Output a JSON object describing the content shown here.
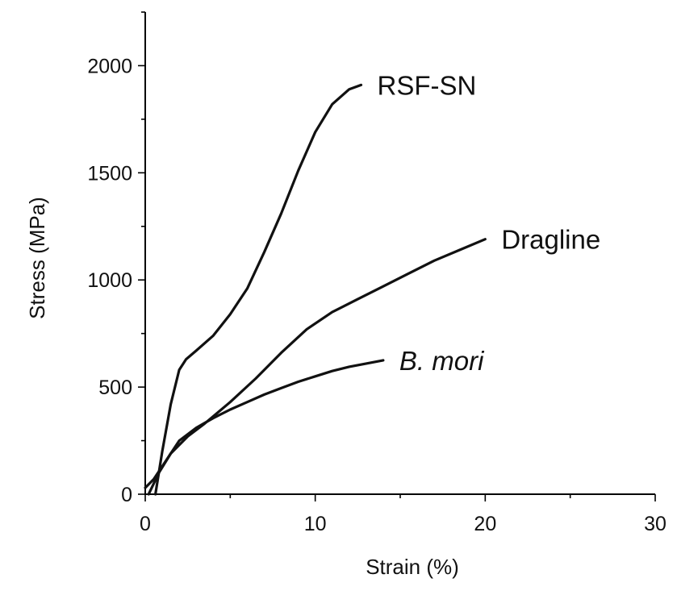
{
  "chart_data": {
    "type": "line",
    "xlabel": "Strain (%)",
    "ylabel": "Stress (MPa)",
    "xlim": [
      0,
      30
    ],
    "ylim": [
      0,
      2250
    ],
    "xticks": [
      0,
      10,
      20,
      30
    ],
    "yticks": [
      0,
      500,
      1000,
      1500,
      2000
    ],
    "grid": false,
    "series": [
      {
        "name": "RSF-SN",
        "italic": false,
        "x": [
          0.6,
          1.0,
          1.5,
          2.0,
          2.4,
          3.0,
          4.0,
          5.0,
          6.0,
          7.0,
          8.0,
          9.0,
          10.0,
          11.0,
          12.0,
          12.7
        ],
        "y": [
          0,
          200,
          420,
          580,
          630,
          670,
          740,
          840,
          960,
          1130,
          1310,
          1510,
          1690,
          1820,
          1890,
          1910
        ]
      },
      {
        "name": "Dragline",
        "italic": false,
        "x": [
          0.2,
          0.8,
          1.5,
          2.5,
          3.5,
          5.0,
          6.5,
          8.0,
          9.5,
          11.0,
          12.5,
          14.0,
          15.5,
          17.0,
          18.5,
          20.0
        ],
        "y": [
          0,
          100,
          190,
          270,
          330,
          430,
          540,
          660,
          770,
          850,
          910,
          970,
          1030,
          1090,
          1140,
          1190
        ]
      },
      {
        "name": "B. mori",
        "italic": true,
        "x": [
          0.0,
          0.5,
          1.0,
          2.0,
          3.0,
          4.0,
          5.0,
          6.0,
          7.0,
          8.0,
          9.0,
          10.0,
          11.0,
          12.0,
          13.0,
          14.0
        ],
        "y": [
          30,
          70,
          130,
          250,
          310,
          355,
          395,
          430,
          465,
          495,
          525,
          550,
          575,
          595,
          610,
          625
        ]
      }
    ]
  }
}
